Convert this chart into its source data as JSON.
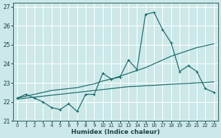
{
  "xlabel": "Humidex (Indice chaleur)",
  "bg_color": "#cce8e8",
  "grid_color": "#b8d8d8",
  "line_color": "#1a6b6b",
  "xlim": [
    -0.5,
    23.5
  ],
  "ylim": [
    21.0,
    27.2
  ],
  "xticks": [
    0,
    1,
    2,
    3,
    4,
    5,
    6,
    7,
    8,
    9,
    10,
    11,
    12,
    13,
    14,
    15,
    16,
    17,
    18,
    19,
    20,
    21,
    22,
    23
  ],
  "yticks": [
    21,
    22,
    23,
    24,
    25,
    26,
    27
  ],
  "line1_x": [
    0,
    1,
    2,
    3,
    4,
    5,
    6,
    7,
    8,
    9,
    10,
    11,
    12,
    13,
    14,
    15,
    16,
    17,
    18,
    19,
    20,
    21,
    22,
    23
  ],
  "line1_y": [
    22.2,
    22.4,
    22.2,
    22.0,
    21.7,
    21.6,
    21.9,
    21.5,
    22.4,
    22.4,
    23.5,
    23.2,
    23.3,
    24.2,
    23.7,
    26.6,
    26.7,
    25.8,
    25.1,
    23.6,
    23.9,
    23.6,
    22.7,
    22.5
  ],
  "line2_x": [
    0,
    1,
    2,
    3,
    4,
    5,
    6,
    7,
    8,
    9,
    10,
    11,
    12,
    13,
    14,
    15,
    16,
    17,
    18,
    19,
    20,
    21,
    22,
    23
  ],
  "line2_y": [
    22.2,
    22.3,
    22.4,
    22.5,
    22.6,
    22.65,
    22.7,
    22.75,
    22.85,
    22.95,
    23.1,
    23.2,
    23.35,
    23.5,
    23.65,
    23.8,
    24.0,
    24.2,
    24.4,
    24.55,
    24.7,
    24.85,
    24.95,
    25.05
  ],
  "line3_x": [
    0,
    1,
    2,
    3,
    4,
    5,
    6,
    7,
    8,
    9,
    10,
    11,
    12,
    13,
    14,
    15,
    16,
    17,
    18,
    19,
    20,
    21,
    22,
    23
  ],
  "line3_y": [
    22.15,
    22.2,
    22.25,
    22.3,
    22.35,
    22.4,
    22.45,
    22.5,
    22.55,
    22.6,
    22.65,
    22.7,
    22.75,
    22.8,
    22.82,
    22.85,
    22.87,
    22.9,
    22.93,
    22.95,
    22.97,
    23.0,
    23.02,
    23.05
  ]
}
